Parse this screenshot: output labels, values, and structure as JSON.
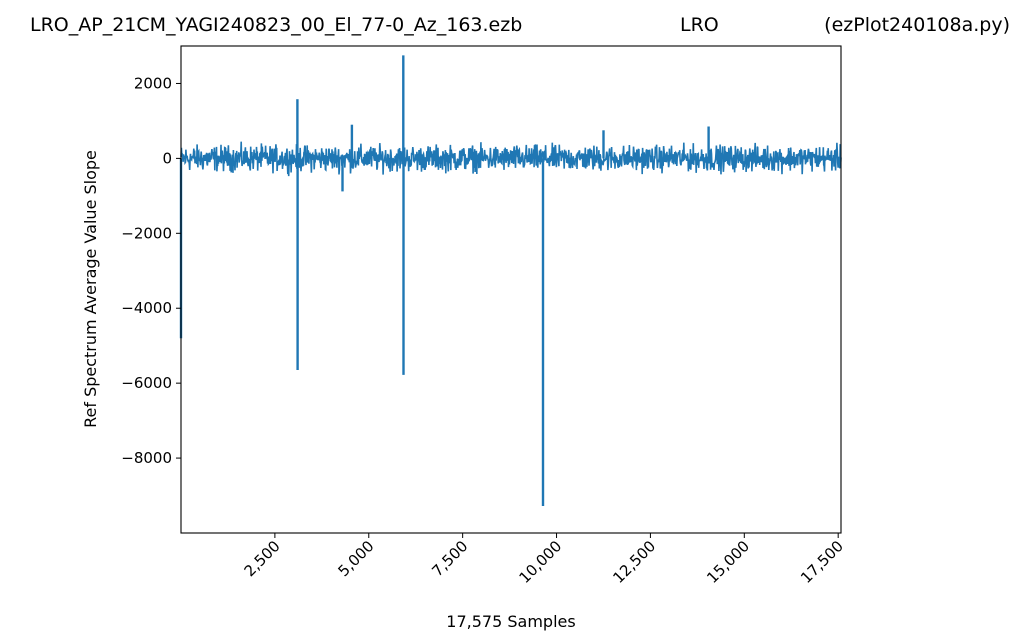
{
  "figure": {
    "title_left": "LRO_AP_21CM_YAGI240823_00_El_77-0_Az_163.ezb",
    "title_center": "LRO",
    "title_right": "(ezPlot240108a.py)"
  },
  "chart_data": {
    "type": "line",
    "title": "LRO_AP_21CM_YAGI240823_00_El_77-0_Az_163.ezb",
    "xlabel": "17,575 Samples",
    "ylabel": "Ref Spectrum Average Value Slope",
    "xlim": [
      0,
      17575
    ],
    "ylim": [
      -10000,
      3000
    ],
    "x_ticks": [
      2500,
      5000,
      7500,
      10000,
      12500,
      15000,
      17500
    ],
    "x_tick_labels": [
      "2,500",
      "5,000",
      "7,500",
      "10,000",
      "12,500",
      "15,000",
      "17,500"
    ],
    "y_ticks": [
      2000,
      0,
      -2000,
      -4000,
      -6000,
      -8000
    ],
    "y_tick_labels": [
      "2000",
      "0",
      "−2000",
      "−4000",
      "−6000",
      "−8000"
    ],
    "grid": false,
    "line_color": "#1f77b4",
    "noise_band": {
      "y_min": -500,
      "y_max": 500
    },
    "spikes": [
      {
        "x": 1,
        "y": -4800
      },
      {
        "x": 3100,
        "y": 1580
      },
      {
        "x": 3105,
        "y": -5650
      },
      {
        "x": 4550,
        "y": 900
      },
      {
        "x": 4300,
        "y": -880
      },
      {
        "x": 5920,
        "y": 2750
      },
      {
        "x": 5925,
        "y": -5780
      },
      {
        "x": 9640,
        "y": -9280
      },
      {
        "x": 11250,
        "y": 750
      },
      {
        "x": 14050,
        "y": 850
      }
    ]
  }
}
